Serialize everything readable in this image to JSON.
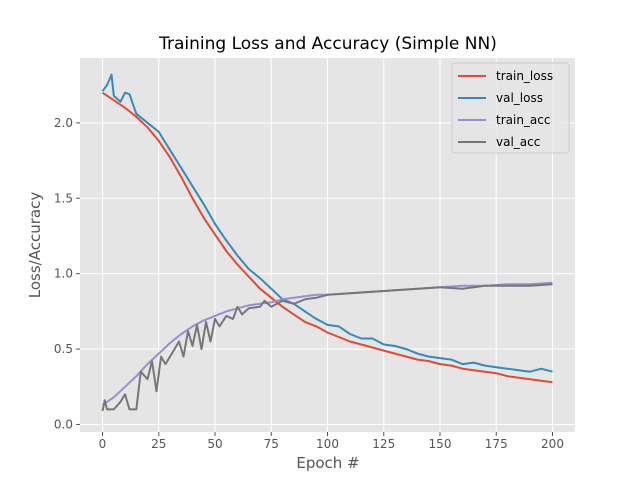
{
  "chart_data": {
    "type": "line",
    "title": "Training Loss and Accuracy (Simple NN)",
    "xlabel": "Epoch #",
    "ylabel": "Loss/Accuracy",
    "xlim": [
      -10,
      210
    ],
    "ylim": [
      -0.05,
      2.43
    ],
    "xticks": [
      0,
      25,
      50,
      75,
      100,
      125,
      150,
      175,
      200
    ],
    "yticks": [
      0.0,
      0.5,
      1.0,
      1.5,
      2.0
    ],
    "grid": true,
    "legend_placement": "top-right",
    "series": [
      {
        "name": "train_loss",
        "color": "#E24A33",
        "x": [
          0,
          5,
          10,
          15,
          20,
          25,
          30,
          35,
          40,
          45,
          50,
          55,
          60,
          65,
          70,
          75,
          80,
          85,
          90,
          95,
          100,
          105,
          110,
          115,
          120,
          125,
          130,
          135,
          140,
          145,
          150,
          155,
          160,
          165,
          170,
          175,
          180,
          185,
          190,
          195,
          200
        ],
        "y": [
          2.2,
          2.15,
          2.1,
          2.04,
          1.97,
          1.88,
          1.77,
          1.64,
          1.5,
          1.37,
          1.26,
          1.15,
          1.06,
          0.98,
          0.9,
          0.84,
          0.78,
          0.73,
          0.68,
          0.65,
          0.61,
          0.58,
          0.55,
          0.53,
          0.51,
          0.49,
          0.47,
          0.45,
          0.43,
          0.42,
          0.4,
          0.39,
          0.37,
          0.36,
          0.35,
          0.34,
          0.32,
          0.31,
          0.3,
          0.29,
          0.28
        ]
      },
      {
        "name": "val_loss",
        "color": "#348ABD",
        "x": [
          0,
          2,
          4,
          5,
          8,
          10,
          12,
          15,
          20,
          25,
          30,
          35,
          40,
          45,
          50,
          55,
          60,
          65,
          70,
          75,
          80,
          85,
          90,
          95,
          100,
          105,
          110,
          115,
          120,
          125,
          130,
          135,
          140,
          145,
          150,
          155,
          160,
          165,
          170,
          175,
          180,
          185,
          190,
          195,
          200
        ],
        "y": [
          2.21,
          2.25,
          2.32,
          2.18,
          2.14,
          2.2,
          2.19,
          2.06,
          2.0,
          1.94,
          1.82,
          1.7,
          1.58,
          1.46,
          1.33,
          1.22,
          1.12,
          1.03,
          0.97,
          0.9,
          0.83,
          0.8,
          0.75,
          0.7,
          0.66,
          0.65,
          0.6,
          0.57,
          0.57,
          0.53,
          0.52,
          0.5,
          0.47,
          0.45,
          0.44,
          0.43,
          0.4,
          0.41,
          0.39,
          0.38,
          0.37,
          0.36,
          0.35,
          0.37,
          0.35
        ]
      },
      {
        "name": "train_acc",
        "color": "#988ED5",
        "x": [
          0,
          5,
          10,
          15,
          20,
          25,
          30,
          35,
          40,
          45,
          50,
          55,
          60,
          65,
          70,
          75,
          80,
          85,
          90,
          95,
          100,
          110,
          120,
          130,
          140,
          150,
          160,
          170,
          180,
          190,
          200
        ],
        "y": [
          0.13,
          0.18,
          0.25,
          0.32,
          0.4,
          0.47,
          0.54,
          0.6,
          0.65,
          0.69,
          0.72,
          0.75,
          0.77,
          0.79,
          0.8,
          0.81,
          0.83,
          0.84,
          0.85,
          0.86,
          0.86,
          0.87,
          0.88,
          0.89,
          0.9,
          0.91,
          0.92,
          0.92,
          0.93,
          0.93,
          0.94
        ]
      },
      {
        "name": "val_acc",
        "color": "#777777",
        "x": [
          0,
          1,
          2,
          5,
          8,
          10,
          12,
          15,
          17,
          20,
          22,
          24,
          26,
          28,
          30,
          32,
          34,
          36,
          38,
          40,
          42,
          44,
          46,
          48,
          50,
          52,
          55,
          58,
          60,
          62,
          65,
          70,
          72,
          75,
          80,
          85,
          90,
          95,
          100,
          110,
          120,
          130,
          140,
          150,
          160,
          170,
          180,
          190,
          200
        ],
        "y": [
          0.09,
          0.16,
          0.1,
          0.1,
          0.15,
          0.2,
          0.1,
          0.1,
          0.35,
          0.3,
          0.42,
          0.22,
          0.45,
          0.4,
          0.45,
          0.5,
          0.55,
          0.45,
          0.62,
          0.52,
          0.66,
          0.5,
          0.68,
          0.55,
          0.7,
          0.65,
          0.72,
          0.7,
          0.78,
          0.73,
          0.77,
          0.78,
          0.82,
          0.78,
          0.82,
          0.8,
          0.83,
          0.84,
          0.86,
          0.87,
          0.88,
          0.89,
          0.9,
          0.91,
          0.9,
          0.92,
          0.92,
          0.92,
          0.93
        ]
      }
    ]
  }
}
